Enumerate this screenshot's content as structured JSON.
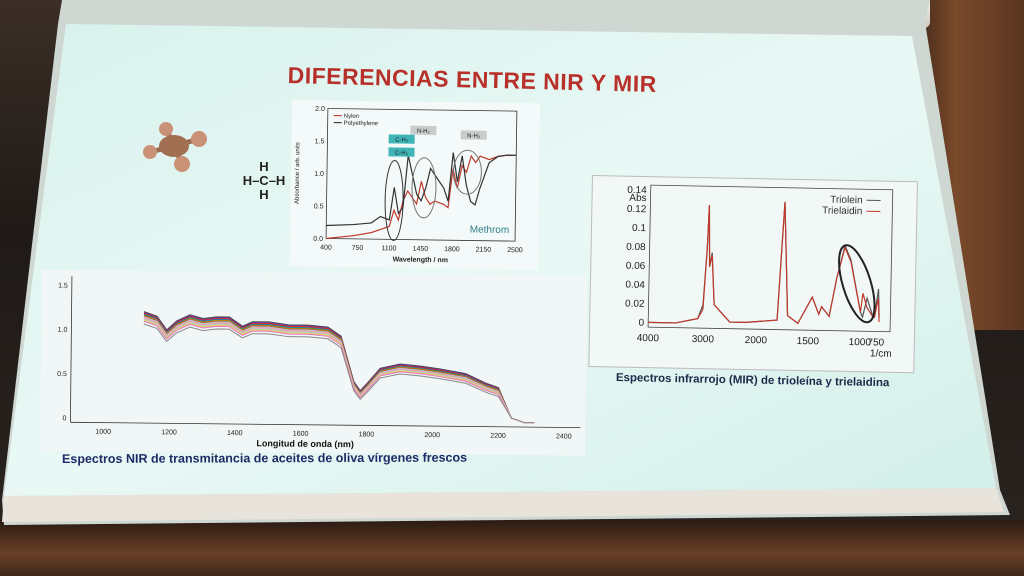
{
  "slide": {
    "title": "DIFERENCIAS ENTRE NIR Y MIR",
    "molecule_label": {
      "top": "H",
      "middle": "H–C–H",
      "bottom": "H"
    }
  },
  "chart_data": [
    {
      "id": "nylon-polyethylene",
      "type": "line",
      "xlabel": "Wavelength / nm",
      "ylabel": "Absorbance / arb. units",
      "x_ticks": [
        "400",
        "750",
        "1100",
        "1450",
        "1800",
        "2150",
        "2500"
      ],
      "y_ticks": [
        "0.0",
        "0.5",
        "1.0",
        "1.5",
        "2.0"
      ],
      "xlim": [
        400,
        2500
      ],
      "ylim": [
        0,
        2.0
      ],
      "legend": [
        "Nylon",
        "Polyethylene"
      ],
      "annotations": [
        "C-H₂",
        "C-H₂",
        "N-H₂",
        "N-H₂"
      ],
      "brand": "Methrom",
      "series": [
        {
          "name": "Nylon",
          "color": "#c0392b",
          "x": [
            400,
            700,
            900,
            1000,
            1100,
            1150,
            1200,
            1250,
            1300,
            1400,
            1450,
            1500,
            1550,
            1600,
            1700,
            1750,
            1800,
            1850,
            1900,
            1950,
            2000,
            2050,
            2100,
            2200,
            2300,
            2400,
            2500
          ],
          "y": [
            0.0,
            0.05,
            0.1,
            0.15,
            0.2,
            0.45,
            0.3,
            0.6,
            0.75,
            0.55,
            0.9,
            0.65,
            0.55,
            0.6,
            0.55,
            0.5,
            1.1,
            0.8,
            1.15,
            1.05,
            1.3,
            1.2,
            1.3,
            1.25,
            1.3,
            1.32,
            1.32
          ]
        },
        {
          "name": "Polyethylene",
          "color": "#333333",
          "x": [
            400,
            700,
            900,
            1000,
            1100,
            1150,
            1200,
            1250,
            1300,
            1400,
            1450,
            1500,
            1550,
            1600,
            1700,
            1750,
            1800,
            1850,
            1900,
            1950,
            2000,
            2050,
            2100,
            2200,
            2300,
            2400,
            2500
          ],
          "y": [
            0.2,
            0.22,
            0.25,
            0.35,
            0.3,
            0.8,
            0.4,
            0.5,
            1.3,
            0.7,
            0.6,
            0.8,
            1.1,
            1.0,
            0.8,
            0.6,
            1.35,
            0.9,
            1.3,
            0.85,
            0.6,
            0.55,
            0.8,
            1.2,
            1.3,
            1.32,
            1.32
          ]
        }
      ]
    },
    {
      "id": "mir-triolein",
      "type": "line",
      "xlabel": "1/cm",
      "ylabel": "Abs",
      "x_ticks": [
        "4000",
        "3000",
        "2000",
        "1500",
        "1000",
        "750"
      ],
      "y_ticks": [
        "0.14",
        "0.12",
        "0.1",
        "0.08",
        "0.06",
        "0.04",
        "0.02",
        "0"
      ],
      "ylim": [
        -0.005,
        0.145
      ],
      "legend": [
        "Triolein",
        "Trielaidin"
      ],
      "caption": "Espectros infrarrojo (MIR) de trioleína y trielaidina",
      "series": [
        {
          "name": "Triolein",
          "color": "#555555",
          "x": [
            4000,
            3500,
            3100,
            3010,
            2950,
            2925,
            2900,
            2855,
            2800,
            2500,
            2200,
            1800,
            1745,
            1700,
            1600,
            1465,
            1400,
            1375,
            1300,
            1235,
            1160,
            1100,
            1000,
            965,
            900,
            850,
            800,
            780,
            720,
            700
          ],
          "y": [
            0.0,
            0.0,
            0.005,
            0.02,
            0.08,
            0.125,
            0.06,
            0.075,
            0.02,
            0.002,
            0.002,
            0.005,
            0.13,
            0.01,
            0.002,
            0.03,
            0.012,
            0.02,
            0.01,
            0.05,
            0.085,
            0.07,
            0.015,
            0.01,
            0.03,
            0.02,
            0.01,
            0.01,
            0.04,
            0.01
          ]
        },
        {
          "name": "Trielaidin",
          "color": "#c0392b",
          "x": [
            4000,
            3500,
            3100,
            3010,
            2950,
            2925,
            2900,
            2855,
            2800,
            2500,
            2200,
            1800,
            1745,
            1700,
            1600,
            1465,
            1400,
            1375,
            1300,
            1235,
            1160,
            1100,
            1000,
            965,
            900,
            850,
            800,
            780,
            720,
            700
          ],
          "y": [
            0.0,
            0.0,
            0.005,
            0.015,
            0.08,
            0.125,
            0.06,
            0.072,
            0.02,
            0.002,
            0.002,
            0.005,
            0.13,
            0.01,
            0.002,
            0.03,
            0.012,
            0.02,
            0.01,
            0.05,
            0.083,
            0.068,
            0.015,
            0.035,
            0.02,
            0.015,
            0.01,
            0.01,
            0.03,
            0.005
          ]
        }
      ]
    },
    {
      "id": "nir-olive-oil",
      "type": "line",
      "xlabel": "Longitud de onda (nm)",
      "x_ticks": [
        "1000",
        "1200",
        "1400",
        "1600",
        "1800",
        "2000",
        "2200",
        "2400"
      ],
      "y_ticks": [
        "1.5",
        "1.0",
        "0.5",
        "0"
      ],
      "xlim": [
        900,
        2450
      ],
      "ylim": [
        -0.05,
        1.6
      ],
      "caption": "Espectros NIR de transmitancia de aceites de oliva vírgenes frescos",
      "series_count": 14,
      "base_x": [
        1120,
        1160,
        1190,
        1220,
        1260,
        1300,
        1340,
        1380,
        1420,
        1450,
        1500,
        1560,
        1620,
        1680,
        1720,
        1760,
        1780,
        1800,
        1840,
        1900,
        1960,
        2020,
        2100,
        2160,
        2200,
        2240,
        2280,
        2310
      ],
      "base_y": [
        1.15,
        1.1,
        0.95,
        1.05,
        1.12,
        1.08,
        1.1,
        1.1,
        1.0,
        1.05,
        1.05,
        1.02,
        1.02,
        1.0,
        0.9,
        0.4,
        0.3,
        0.38,
        0.55,
        0.6,
        0.58,
        0.55,
        0.5,
        0.4,
        0.35,
        0.05,
        0.0,
        0.0
      ],
      "offsets": [
        0.06,
        0.05,
        0.04,
        0.03,
        0.02,
        0.015,
        0.01,
        0.0,
        -0.01,
        -0.02,
        -0.03,
        -0.04,
        -0.05,
        -0.08
      ],
      "colors": [
        "#444",
        "#6a3d9a",
        "#e31a1c",
        "#1f78b4",
        "#33a02c",
        "#ff7f00",
        "#b15928",
        "#a6cee3",
        "#fb9a99",
        "#cab2d6",
        "#b2df8a",
        "#fdbf6f",
        "#e377c2",
        "#888"
      ]
    }
  ]
}
